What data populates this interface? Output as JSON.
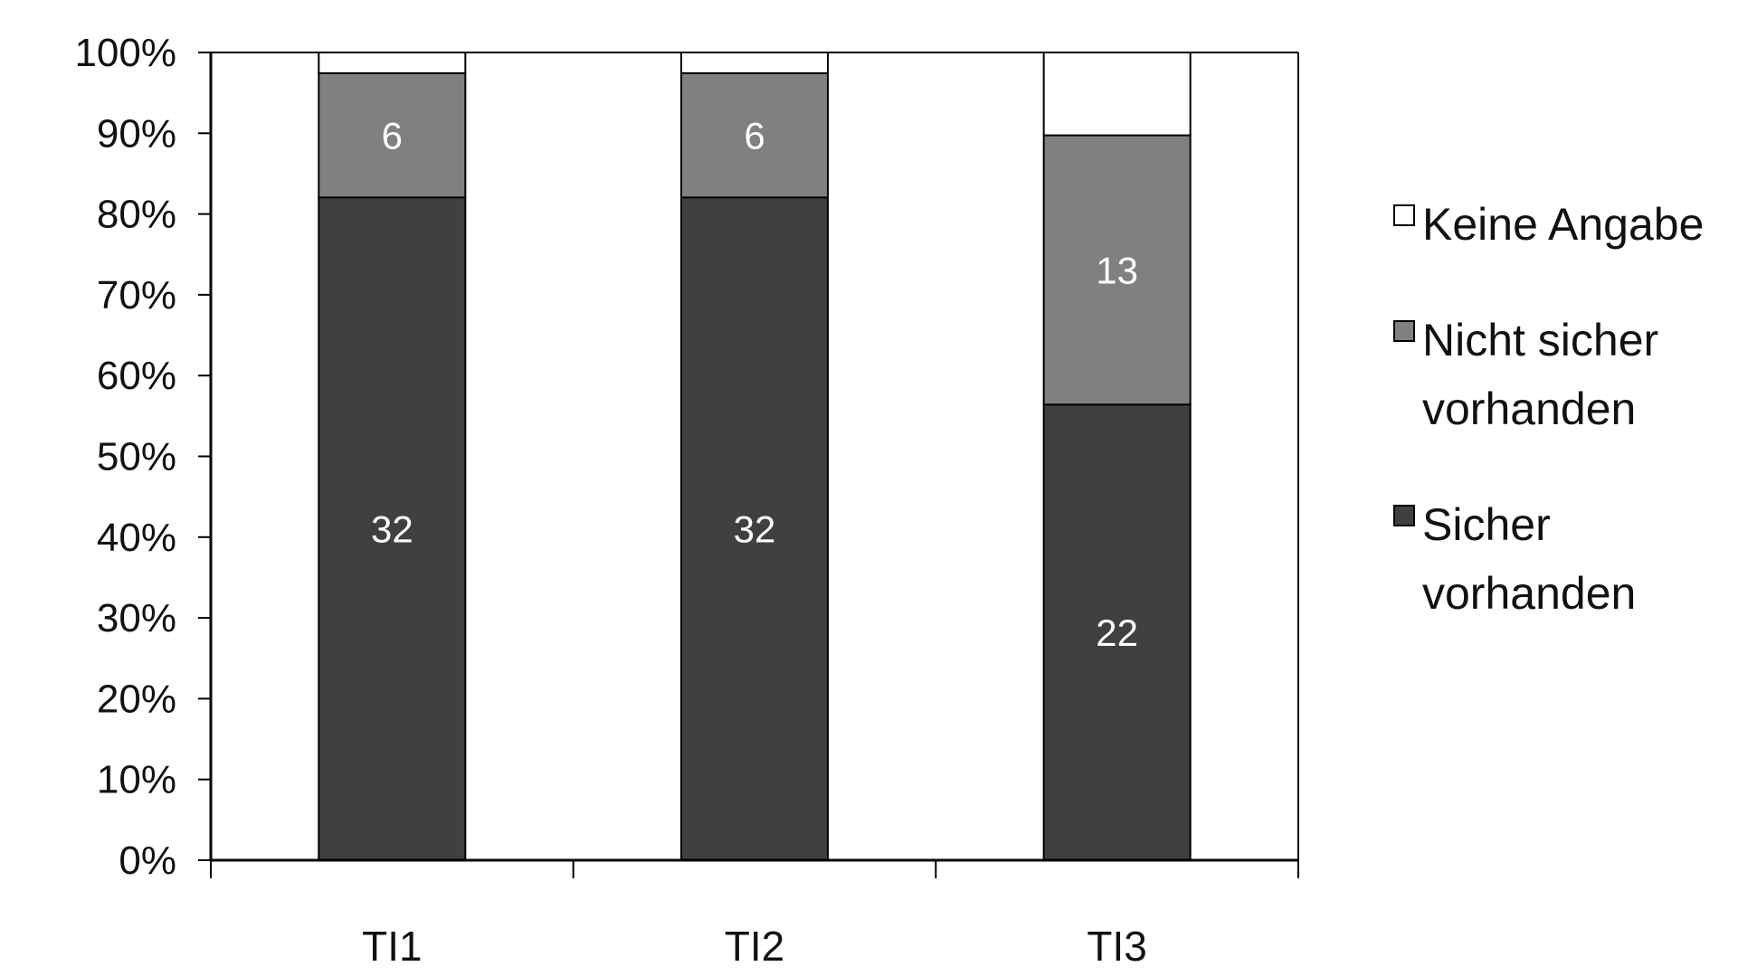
{
  "chart_data": {
    "type": "bar",
    "stacked": true,
    "percent_stacked": true,
    "categories": [
      "TI1",
      "TI2",
      "TI3"
    ],
    "series": [
      {
        "name": "Sicher vorhanden",
        "values": [
          32,
          32,
          22
        ],
        "color": "#404040",
        "labels": [
          "32",
          "32",
          "22"
        ]
      },
      {
        "name": "Nicht sicher vorhanden",
        "values": [
          6,
          6,
          13
        ],
        "color": "#808080",
        "labels": [
          "6",
          "6",
          "13"
        ]
      },
      {
        "name": "Keine Angabe",
        "values": [
          1,
          1,
          4
        ],
        "color": "#ffffff",
        "labels": [
          "",
          "",
          ""
        ]
      }
    ],
    "yticks": [
      "0%",
      "10%",
      "20%",
      "30%",
      "40%",
      "50%",
      "60%",
      "70%",
      "80%",
      "90%",
      "100%"
    ],
    "ylim": [
      0,
      100
    ],
    "grid": false,
    "legend_position": "right"
  }
}
